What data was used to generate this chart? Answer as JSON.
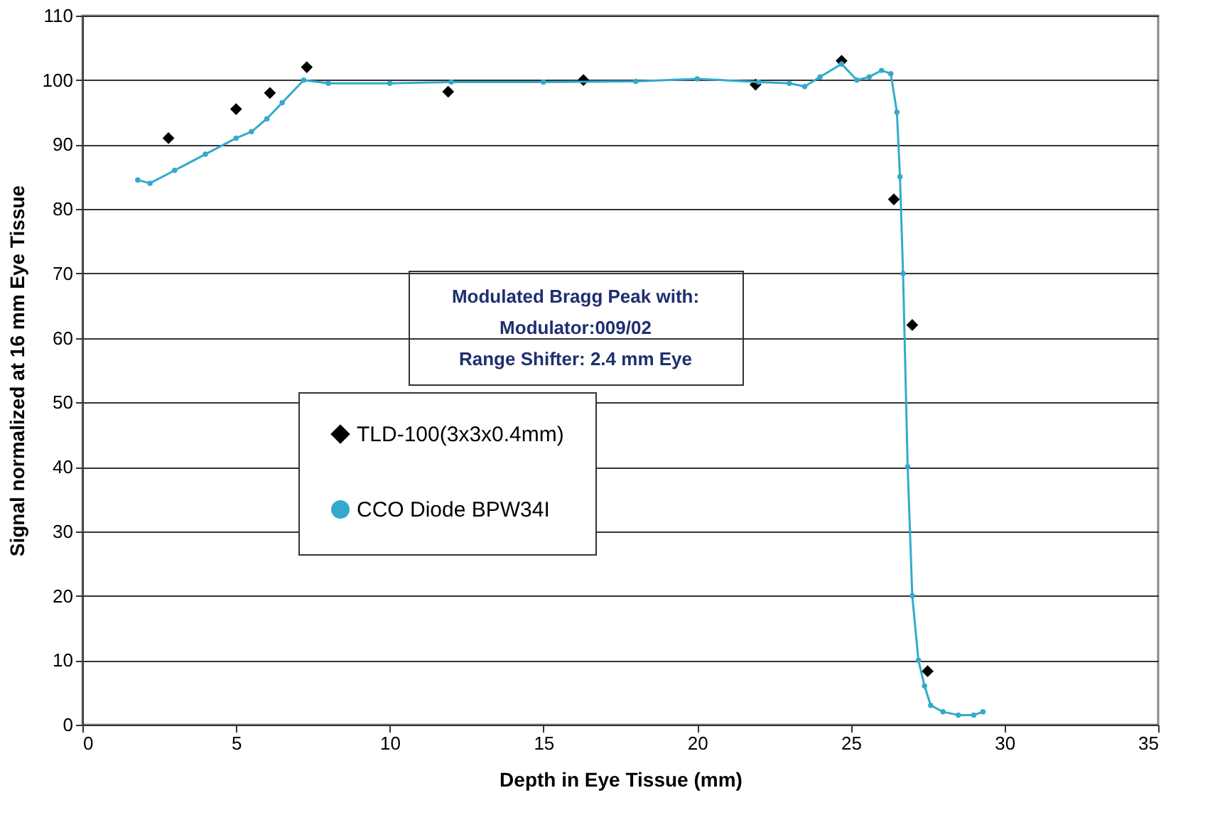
{
  "chart_data": {
    "type": "line",
    "xlabel": "Depth in Eye Tissue (mm)",
    "ylabel": "Signal normalized at 16 mm Eye Tissue",
    "xlim": [
      0,
      35
    ],
    "ylim": [
      0,
      110
    ],
    "xticks": [
      0,
      5,
      10,
      15,
      20,
      25,
      30,
      35
    ],
    "yticks": [
      0,
      10,
      20,
      30,
      40,
      50,
      60,
      70,
      80,
      90,
      100,
      110
    ],
    "grid": "y",
    "legend": "left",
    "annotations": [
      "Modulated Bragg Peak with:",
      "Modulator:009/02",
      "Range Shifter: 2.4 mm Eye"
    ],
    "series": [
      {
        "name": "TLD-100(3x3x0.4mm)",
        "type": "scatter",
        "marker": "diamond",
        "color": "#000000",
        "x": [
          2.8,
          5.0,
          6.1,
          7.3,
          11.9,
          16.3,
          21.9,
          24.7,
          26.4,
          27.0,
          27.5
        ],
        "values": [
          91,
          95.5,
          98,
          102,
          98.2,
          100,
          99.3,
          103,
          81.5,
          62,
          8.3
        ]
      },
      {
        "name": "CCO Diode BPW34I",
        "marker": "circle",
        "color": "#33aacc",
        "x": [
          1.8,
          2.2,
          3,
          4,
          5,
          5.5,
          6,
          6.5,
          7.2,
          8,
          10,
          12,
          15,
          18,
          20,
          22,
          23,
          23.5,
          24,
          24.7,
          25.2,
          25.6,
          26,
          26.3,
          26.5,
          26.6,
          26.7,
          26.85,
          27.0,
          27.2,
          27.4,
          27.6,
          28,
          28.5,
          29,
          29.3
        ],
        "values": [
          84.5,
          84,
          86,
          88.5,
          91,
          92,
          94,
          96.5,
          100,
          99.5,
          99.5,
          99.7,
          99.7,
          99.8,
          100.2,
          99.7,
          99.5,
          99,
          100.5,
          102.5,
          100,
          100.5,
          101.5,
          101,
          95,
          85,
          70,
          40,
          20,
          10,
          6,
          3,
          2,
          1.5,
          1.5,
          2
        ]
      }
    ]
  }
}
